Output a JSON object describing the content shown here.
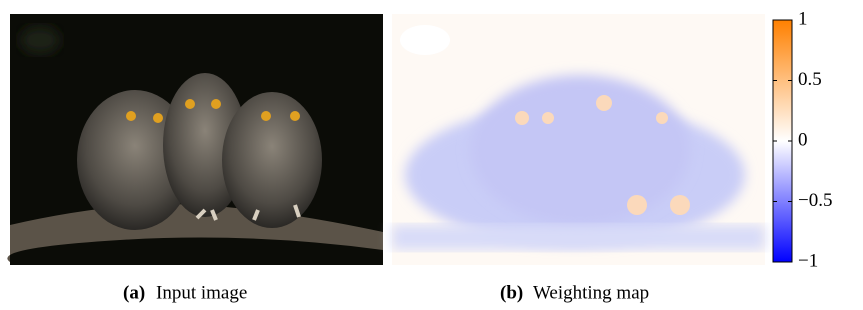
{
  "panels": [
    {
      "label": "(a)",
      "caption": "Input image"
    },
    {
      "label": "(b)",
      "caption": "Weighting map"
    }
  ],
  "colorbar": {
    "lim": [
      -1,
      1
    ],
    "colors": [
      "#0000ff",
      "#ffffff",
      "#ff8000"
    ],
    "ticks": [
      1,
      0.5,
      0,
      {
        "value": -0.5,
        "label": "−0.5"
      },
      {
        "value": -1,
        "label": "−1"
      }
    ]
  }
}
